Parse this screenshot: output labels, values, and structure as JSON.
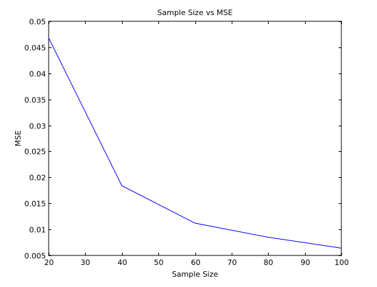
{
  "chart_data": {
    "type": "line",
    "title": "Sample Size vs MSE",
    "xlabel": "Sample Size",
    "ylabel": "MSE",
    "xlim": [
      20,
      100
    ],
    "ylim": [
      0.005,
      0.05
    ],
    "xticks": [
      20,
      30,
      40,
      50,
      60,
      70,
      80,
      90,
      100
    ],
    "yticks": [
      0.005,
      0.01,
      0.015,
      0.02,
      0.025,
      0.03,
      0.035,
      0.04,
      0.045,
      0.05
    ],
    "xtick_labels": [
      "20",
      "30",
      "40",
      "50",
      "60",
      "70",
      "80",
      "90",
      "100"
    ],
    "ytick_labels": [
      "0.005",
      "0.01",
      "0.015",
      "0.02",
      "0.025",
      "0.03",
      "0.035",
      "0.04",
      "0.045",
      "0.05"
    ],
    "grid": false,
    "series": [
      {
        "x": [
          20,
          40,
          60,
          80,
          100
        ],
        "y": [
          0.0468,
          0.0184,
          0.0112,
          0.0085,
          0.0064
        ],
        "color": "#0000ff"
      }
    ]
  }
}
